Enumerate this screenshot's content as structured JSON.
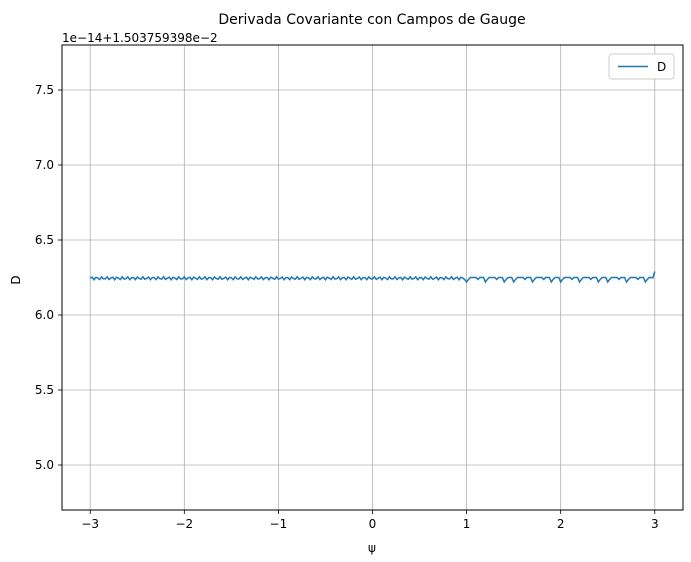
{
  "chart_data": {
    "type": "line",
    "title": "Derivada Covariante con Campos de Gauge",
    "xlabel": "ψ",
    "ylabel": "D",
    "y_offset_label": "1e−14+1.503759398e−2",
    "xlim": [
      -3.3,
      3.3
    ],
    "ylim": [
      4.7,
      7.8
    ],
    "x_ticks": [
      -3,
      -2,
      -1,
      0,
      1,
      2,
      3
    ],
    "x_tick_labels": [
      "−3",
      "−2",
      "−1",
      "0",
      "1",
      "2",
      "3"
    ],
    "y_ticks": [
      5.0,
      5.5,
      6.0,
      6.5,
      7.0,
      7.5
    ],
    "y_tick_labels": [
      "5.0",
      "5.5",
      "6.0",
      "6.5",
      "7.0",
      "7.5"
    ],
    "grid": true,
    "legend_position": "top-right",
    "series": [
      {
        "name": "D",
        "color": "#1f77b4",
        "x_range": [
          -3,
          3
        ],
        "points": 300,
        "baseline": 6.245,
        "oscillation_amplitude": 0.01,
        "dip_region": [
          1.0,
          3.0
        ],
        "dip_level": 6.22,
        "dip_period": 0.1,
        "end_value": 6.29
      }
    ]
  }
}
